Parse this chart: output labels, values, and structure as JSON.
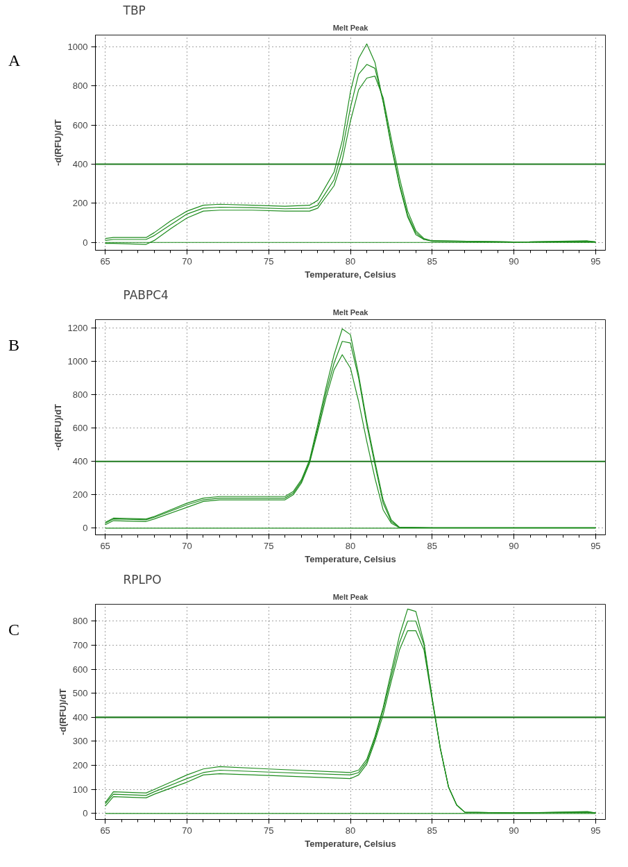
{
  "chart_data": [
    {
      "type": "line",
      "title": "TBP",
      "subtitle": "Melt Peak",
      "annotations": [
        "A"
      ],
      "xlabel": "Temperature, Celsius",
      "ylabel": "-d(RFU)/dT",
      "xlim": [
        64.4,
        95.6
      ],
      "ylim": [
        -40,
        1060
      ],
      "xticks": [
        65,
        70,
        75,
        80,
        85,
        90,
        95
      ],
      "yticks": [
        0,
        200,
        400,
        600,
        800,
        1000
      ],
      "grid": true,
      "x": [
        65,
        65.5,
        67.5,
        68,
        69,
        70,
        71,
        72,
        74,
        76,
        77.5,
        78,
        79,
        79.5,
        80,
        80.5,
        81,
        81.5,
        82,
        82.5,
        83,
        83.5,
        84,
        84.5,
        85,
        90,
        94.5,
        95
      ],
      "series": [
        {
          "color": "#1e8c1e",
          "values": [
            20,
            25,
            25,
            50,
            110,
            160,
            190,
            195,
            190,
            185,
            190,
            215,
            360,
            520,
            770,
            940,
            1015,
            920,
            720,
            490,
            290,
            130,
            40,
            15,
            8,
            2,
            8,
            3
          ]
        },
        {
          "color": "#1e8c1e",
          "values": [
            10,
            15,
            15,
            35,
            90,
            145,
            175,
            180,
            178,
            172,
            175,
            190,
            320,
            470,
            690,
            860,
            910,
            890,
            720,
            500,
            300,
            140,
            50,
            15,
            6,
            2,
            5,
            2
          ]
        },
        {
          "color": "#1e8c1e",
          "values": [
            -5,
            -5,
            -10,
            10,
            70,
            125,
            160,
            165,
            165,
            160,
            160,
            175,
            290,
            420,
            620,
            780,
            840,
            850,
            740,
            530,
            330,
            160,
            60,
            20,
            8,
            2,
            4,
            2
          ]
        },
        {
          "color": "#1e8c1e",
          "values": [
            0,
            0,
            0,
            0,
            0,
            0,
            0,
            0,
            0,
            0,
            0,
            0,
            0,
            0,
            0,
            0,
            0,
            0,
            0,
            0,
            0,
            0,
            0,
            0,
            0,
            0,
            0,
            0
          ]
        }
      ],
      "ref_lines": [
        {
          "axis": "y",
          "value": 400,
          "color": "#1e7a1e"
        }
      ]
    },
    {
      "type": "line",
      "title": "PABPC4",
      "subtitle": "Melt Peak",
      "annotations": [
        "B"
      ],
      "xlabel": "Temperature, Celsius",
      "ylabel": "-d(RFU)/dT",
      "xlim": [
        64.4,
        95.6
      ],
      "ylim": [
        -40,
        1250
      ],
      "xticks": [
        65,
        70,
        75,
        80,
        85,
        90,
        95
      ],
      "yticks": [
        0,
        200,
        400,
        600,
        800,
        1000,
        1200
      ],
      "grid": true,
      "x": [
        65,
        65.5,
        67.5,
        68,
        70,
        71,
        72,
        76,
        76.5,
        77,
        77.5,
        78,
        78.5,
        79,
        79.5,
        80,
        80.5,
        81,
        81.5,
        82,
        82.5,
        83,
        85,
        95
      ],
      "series": [
        {
          "color": "#1e8c1e",
          "values": [
            35,
            60,
            55,
            70,
            150,
            180,
            190,
            190,
            220,
            290,
            410,
            620,
            840,
            1040,
            1195,
            1160,
            920,
            640,
            400,
            170,
            50,
            5,
            2,
            2
          ]
        },
        {
          "color": "#1e8c1e",
          "values": [
            30,
            55,
            50,
            65,
            140,
            170,
            180,
            180,
            210,
            280,
            400,
            600,
            810,
            990,
            1120,
            1110,
            900,
            620,
            380,
            150,
            40,
            5,
            2,
            2
          ]
        },
        {
          "color": "#1e8c1e",
          "values": [
            20,
            45,
            40,
            55,
            125,
            160,
            170,
            170,
            200,
            270,
            390,
            580,
            780,
            950,
            1040,
            960,
            760,
            520,
            300,
            110,
            30,
            3,
            2,
            2
          ]
        },
        {
          "color": "#1e8c1e",
          "values": [
            0,
            0,
            0,
            0,
            0,
            0,
            0,
            0,
            0,
            0,
            0,
            0,
            0,
            0,
            0,
            0,
            0,
            0,
            0,
            0,
            0,
            0,
            0,
            0
          ]
        }
      ],
      "ref_lines": [
        {
          "axis": "y",
          "value": 400,
          "color": "#1e7a1e"
        }
      ]
    },
    {
      "type": "line",
      "title": "RPLPO",
      "subtitle": "Melt Peak",
      "annotations": [
        "C"
      ],
      "xlabel": "Temperature, Celsius",
      "ylabel": "-d(RFU)/dT",
      "xlim": [
        64.4,
        95.6
      ],
      "ylim": [
        -25,
        870
      ],
      "xticks": [
        65,
        70,
        75,
        80,
        85,
        90,
        95
      ],
      "yticks": [
        0,
        100,
        200,
        300,
        400,
        500,
        600,
        700,
        800
      ],
      "grid": true,
      "x": [
        65,
        65.5,
        67.5,
        68,
        70,
        71,
        72,
        75,
        80,
        80.5,
        81,
        81.5,
        82,
        82.5,
        83,
        83.5,
        84,
        84.5,
        85,
        85.5,
        86,
        86.5,
        87,
        90,
        94.5,
        95
      ],
      "series": [
        {
          "color": "#1e8c1e",
          "values": [
            45,
            90,
            85,
            100,
            160,
            185,
            195,
            185,
            170,
            180,
            225,
            320,
            440,
            590,
            740,
            850,
            840,
            710,
            480,
            270,
            110,
            35,
            5,
            2,
            8,
            2
          ]
        },
        {
          "color": "#1e8c1e",
          "values": [
            40,
            80,
            75,
            90,
            145,
            170,
            180,
            172,
            160,
            170,
            215,
            310,
            430,
            570,
            710,
            800,
            800,
            700,
            480,
            270,
            110,
            35,
            5,
            2,
            6,
            2
          ]
        },
        {
          "color": "#1e8c1e",
          "values": [
            30,
            70,
            65,
            80,
            130,
            160,
            165,
            158,
            145,
            160,
            205,
            300,
            410,
            550,
            680,
            760,
            760,
            680,
            470,
            270,
            110,
            35,
            5,
            2,
            5,
            2
          ]
        },
        {
          "color": "#1e8c1e",
          "values": [
            0,
            0,
            0,
            0,
            0,
            0,
            0,
            0,
            0,
            0,
            0,
            0,
            0,
            0,
            0,
            0,
            0,
            0,
            0,
            0,
            0,
            0,
            0,
            0,
            0,
            0
          ]
        }
      ],
      "ref_lines": [
        {
          "axis": "y",
          "value": 400,
          "color": "#1e7a1e"
        }
      ]
    }
  ]
}
